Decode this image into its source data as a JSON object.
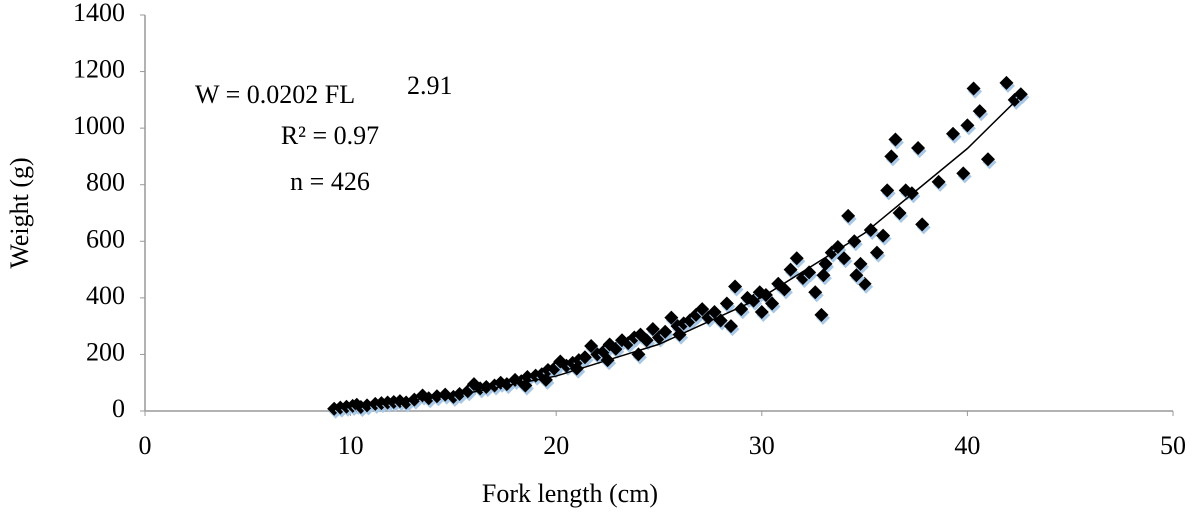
{
  "chart_data": {
    "type": "scatter",
    "xlabel": "Fork length (cm)",
    "ylabel": "Weight (g)",
    "annotations": [
      "W = 0.0202 FL",
      "2.91",
      "R² = 0.97",
      "n = 426"
    ],
    "xlim": [
      0,
      50
    ],
    "xticks": [
      0,
      10,
      20,
      30,
      40,
      50
    ],
    "ylim": [
      0,
      1400
    ],
    "yticks": [
      0,
      200,
      400,
      600,
      800,
      1000,
      1200,
      1400
    ],
    "grid": false,
    "series": [
      {
        "color": "#000000",
        "x": [
          9.2,
          9.5,
          9.8,
          10.1,
          10.3,
          10.5,
          10.8,
          11.2,
          11.5,
          11.8,
          12.1,
          12.4,
          12.7,
          13.1,
          13.5,
          13.8,
          14.2,
          14.6,
          15.0,
          15.3,
          15.7,
          16.0,
          16.3,
          16.6,
          17.0,
          17.3,
          17.6,
          18.0,
          18.3,
          18.6,
          19.0,
          19.3,
          19.6,
          19.9,
          20.2,
          20.5,
          20.8,
          21.1,
          21.4,
          21.7,
          22.0,
          22.3,
          22.6,
          22.9,
          23.2,
          23.5,
          23.8,
          24.1,
          24.4,
          24.7,
          25.0,
          25.3,
          25.6,
          25.9,
          26.2,
          26.5,
          26.8,
          27.1,
          27.4,
          27.7,
          28.0,
          28.3,
          28.7,
          29.0,
          29.3,
          29.6,
          29.9,
          30.2,
          30.5,
          30.8,
          31.1,
          31.4,
          31.7,
          32.0,
          32.3,
          32.6,
          32.9,
          33.1,
          33.4,
          33.7,
          34.0,
          34.2,
          34.5,
          34.8,
          35.0,
          35.3,
          35.6,
          35.9,
          36.1,
          36.3,
          36.5,
          36.7,
          37.0,
          37.3,
          37.6,
          37.8,
          38.6,
          39.3,
          39.8,
          40.0,
          40.3,
          40.6,
          41.0,
          41.9,
          42.3,
          42.6,
          24.0,
          22.5,
          26.0,
          28.5,
          30.0,
          33.0,
          34.6,
          19.5,
          21.0,
          18.5
        ],
        "values": [
          8,
          12,
          15,
          18,
          22,
          14,
          20,
          25,
          28,
          30,
          32,
          35,
          30,
          40,
          55,
          45,
          52,
          58,
          50,
          60,
          70,
          95,
          80,
          85,
          90,
          100,
          95,
          110,
          105,
          120,
          125,
          130,
          145,
          150,
          175,
          160,
          170,
          180,
          190,
          230,
          200,
          210,
          235,
          220,
          250,
          240,
          260,
          270,
          250,
          290,
          260,
          280,
          330,
          300,
          310,
          320,
          340,
          360,
          330,
          350,
          320,
          380,
          440,
          360,
          400,
          390,
          420,
          410,
          380,
          450,
          430,
          500,
          540,
          470,
          490,
          420,
          340,
          520,
          560,
          580,
          540,
          690,
          600,
          520,
          450,
          640,
          560,
          620,
          780,
          900,
          960,
          700,
          780,
          770,
          930,
          660,
          810,
          980,
          840,
          1010,
          1140,
          1060,
          890,
          1160,
          1100,
          1120,
          200,
          180,
          270,
          300,
          350,
          480,
          480,
          110,
          150,
          90
        ]
      }
    ],
    "trendline": {
      "color": "#000000",
      "x": [
        9,
        15,
        20,
        25,
        30,
        35,
        40,
        42.5
      ],
      "values": [
        12.1,
        53.4,
        123.5,
        236,
        402,
        629,
        928,
        1107
      ]
    }
  }
}
